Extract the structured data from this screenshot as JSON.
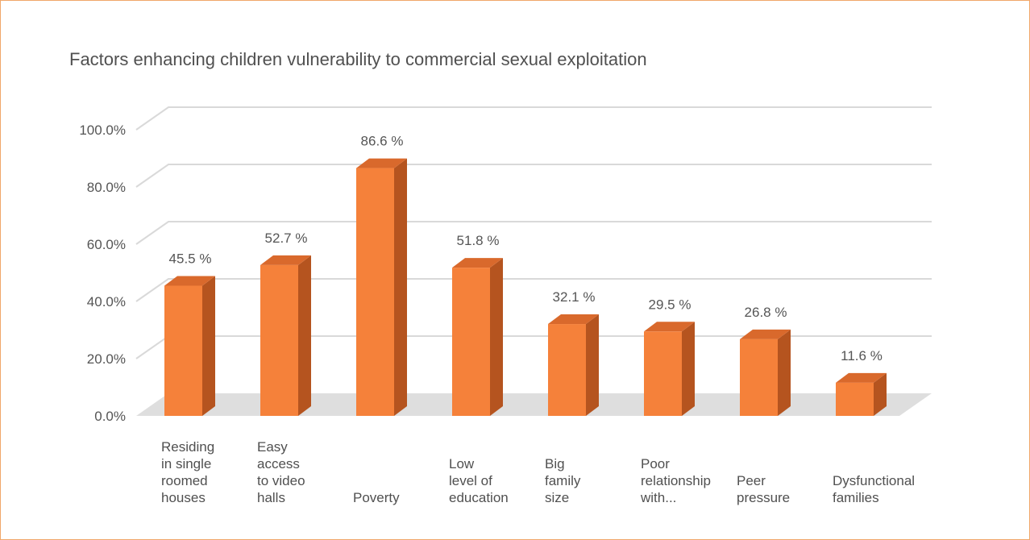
{
  "chart_data": {
    "type": "bar",
    "title": "Factors enhancing children vulnerability to commercial sexual exploitation",
    "categories": [
      "Residing\nin single\nroomed\nhouses",
      "Easy\naccess\nto video\nhalls",
      "Poverty",
      "Low\nlevel of\neducation",
      "Big\nfamily\nsize",
      "Poor\nrelationship\nwith...",
      "Peer\npressure",
      "Dysfunctional\nfamilies"
    ],
    "values": [
      45.5,
      52.7,
      86.6,
      51.8,
      32.1,
      29.5,
      26.8,
      11.6
    ],
    "data_labels": [
      "45.5 %",
      "52.7 %",
      "86.6 %",
      "51.8 %",
      "32.1 %",
      "29.5 %",
      "26.8 %",
      "11.6 %"
    ],
    "yticks": [
      "0.0%",
      "20.0%",
      "40.0%",
      "60.0%",
      "80.0%",
      "100.0%"
    ],
    "ylim": [
      0,
      100
    ],
    "style": "3d-column",
    "grid": true,
    "colors": {
      "bar_front": "#f5813a",
      "bar_side": "#b5541f",
      "bar_top": "#d9692c",
      "gridline": "#d9d9d9",
      "floor": "#dedede",
      "frame_border": "#f0a76a"
    }
  }
}
